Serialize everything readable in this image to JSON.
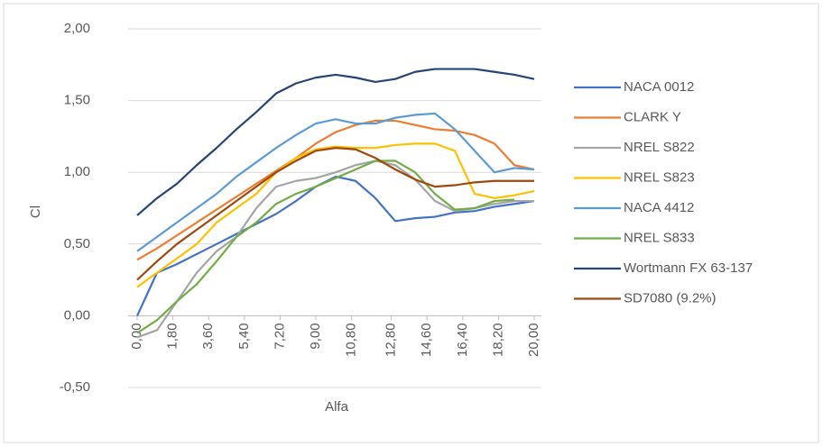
{
  "chart_data": {
    "type": "line",
    "x_label": "Alfa",
    "y_label": "Cl",
    "x": [
      0,
      1,
      2,
      3,
      4,
      5,
      6,
      7,
      8,
      9,
      10,
      11,
      12,
      13,
      14,
      15,
      16,
      17,
      18,
      19,
      20
    ],
    "series": [
      {
        "name": "NACA 0012",
        "color": "#4472c4",
        "values": [
          0,
          0.3,
          0.36,
          0.43,
          0.5,
          0.57,
          0.64,
          0.71,
          0.8,
          0.9,
          0.97,
          0.94,
          0.82,
          0.66,
          0.68,
          0.69,
          0.72,
          0.73,
          0.76,
          0.78,
          0.8
        ]
      },
      {
        "name": "CLARK Y",
        "color": "#ed7d31",
        "values": [
          0.39,
          0.47,
          0.56,
          0.65,
          0.74,
          0.83,
          0.92,
          1.01,
          1.1,
          1.2,
          1.28,
          1.33,
          1.36,
          1.36,
          1.33,
          1.3,
          1.29,
          1.26,
          1.2,
          1.05,
          1.02
        ]
      },
      {
        "name": "NREL S822",
        "color": "#a5a5a5",
        "values": [
          -0.15,
          -0.1,
          0.1,
          0.3,
          0.45,
          0.55,
          0.75,
          0.9,
          0.94,
          0.96,
          1.0,
          1.05,
          1.08,
          1.05,
          0.95,
          0.8,
          0.73,
          0.75,
          0.78,
          0.8,
          0.8
        ]
      },
      {
        "name": "NREL S823",
        "color": "#ffc000",
        "values": [
          0.2,
          0.3,
          0.4,
          0.5,
          0.65,
          0.75,
          0.85,
          1.0,
          1.1,
          1.16,
          1.18,
          1.17,
          1.17,
          1.19,
          1.2,
          1.2,
          1.15,
          0.85,
          0.82,
          0.84,
          0.87
        ]
      },
      {
        "name": "NACA 4412",
        "color": "#5b9bd5",
        "values": [
          0.45,
          0.55,
          0.65,
          0.75,
          0.85,
          0.97,
          1.07,
          1.17,
          1.26,
          1.34,
          1.37,
          1.34,
          1.34,
          1.38,
          1.4,
          1.41,
          1.3,
          1.15,
          1.0,
          1.03,
          1.02
        ]
      },
      {
        "name": "NREL S833",
        "color": "#70ad47",
        "values": [
          -0.12,
          -0.03,
          0.1,
          0.22,
          0.38,
          0.55,
          0.65,
          0.78,
          0.85,
          0.9,
          0.96,
          1.02,
          1.08,
          1.08,
          1.0,
          0.85,
          0.74,
          0.75,
          0.8,
          0.81,
          null
        ]
      },
      {
        "name": "Wortmann FX 63-137",
        "color": "#264478",
        "values": [
          0.7,
          0.82,
          0.92,
          1.05,
          1.17,
          1.3,
          1.42,
          1.55,
          1.62,
          1.66,
          1.68,
          1.66,
          1.63,
          1.65,
          1.7,
          1.72,
          1.72,
          1.72,
          1.7,
          1.68,
          1.65
        ]
      },
      {
        "name": "SD7080 (9.2%)",
        "color": "#9e480e",
        "values": [
          0.25,
          0.38,
          0.5,
          0.6,
          0.7,
          0.8,
          0.9,
          1.0,
          1.08,
          1.15,
          1.17,
          1.16,
          1.1,
          1.02,
          0.95,
          0.9,
          0.91,
          0.93,
          0.94,
          0.94,
          0.94
        ]
      }
    ],
    "xlim": [
      0,
      20
    ],
    "xticks": [
      {
        "value": 0,
        "label": "0,00"
      },
      {
        "value": 1.8,
        "label": "1,80"
      },
      {
        "value": 3.6,
        "label": "3,60"
      },
      {
        "value": 5.4,
        "label": "5,40"
      },
      {
        "value": 7.2,
        "label": "7,20"
      },
      {
        "value": 9,
        "label": "9,00"
      },
      {
        "value": 10.8,
        "label": "10,80"
      },
      {
        "value": 12.8,
        "label": "12,80"
      },
      {
        "value": 14.6,
        "label": "14,60"
      },
      {
        "value": 16.4,
        "label": "16,40"
      },
      {
        "value": 18.2,
        "label": "18,20"
      },
      {
        "value": 20,
        "label": "20,00"
      }
    ],
    "ylim": [
      -0.5,
      2.0
    ],
    "yticks": [
      {
        "value": -0.5,
        "label": "-0,50"
      },
      {
        "value": 0,
        "label": "0,00"
      },
      {
        "value": 0.5,
        "label": "0,50"
      },
      {
        "value": 1,
        "label": "1,00"
      },
      {
        "value": 1.5,
        "label": "1,50"
      },
      {
        "value": 2,
        "label": "2,00"
      }
    ],
    "grid": true,
    "legend": "right"
  }
}
